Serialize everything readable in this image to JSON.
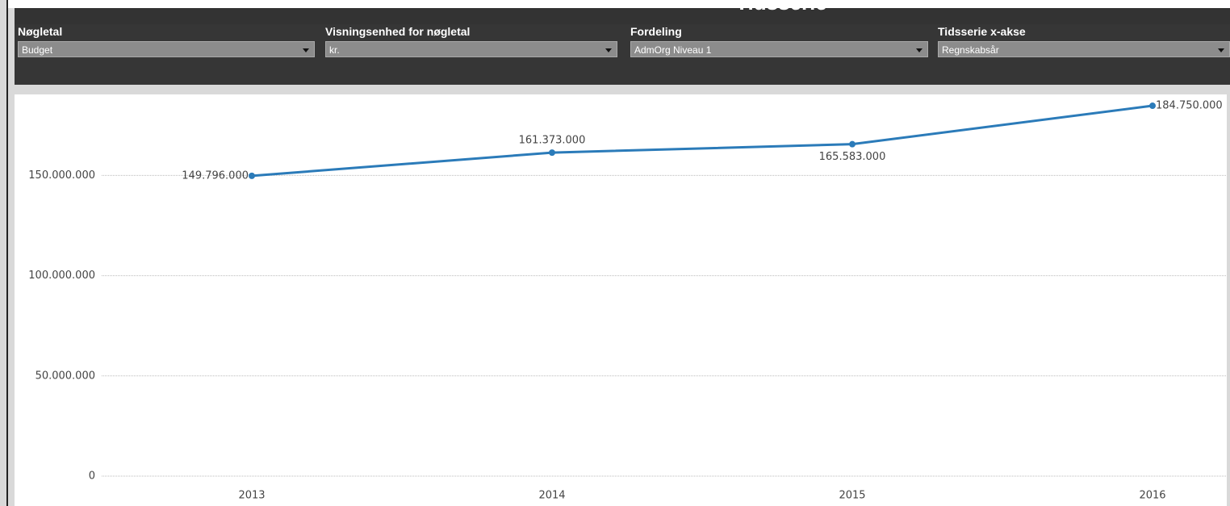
{
  "header": {
    "title": "Tidsserie"
  },
  "filters": [
    {
      "label": "Nøgletal",
      "value": "Budget"
    },
    {
      "label": "Visningsenhed for nøgletal",
      "value": "kr."
    },
    {
      "label": "Fordeling",
      "value": "AdmOrg Niveau 1"
    },
    {
      "label": "Tidsserie x-akse",
      "value": "Regnskabsår"
    }
  ],
  "chart_data": {
    "type": "line",
    "categories": [
      "2013",
      "2014",
      "2015",
      "2016"
    ],
    "values": [
      149796000,
      161373000,
      165583000,
      184750000
    ],
    "value_labels": [
      "149.796.000",
      "161.373.000",
      "165.583.000",
      "184.750.000"
    ],
    "color": "#2b7bb9",
    "ylim": [
      0,
      190000000
    ],
    "yticks": [
      0,
      {
        "value": 50000000,
        "label": "50.000.000"
      },
      {
        "value": 100000000,
        "label": "100.000.000"
      },
      {
        "value": 150000000,
        "label": "150.000.000"
      }
    ],
    "grid": true
  }
}
